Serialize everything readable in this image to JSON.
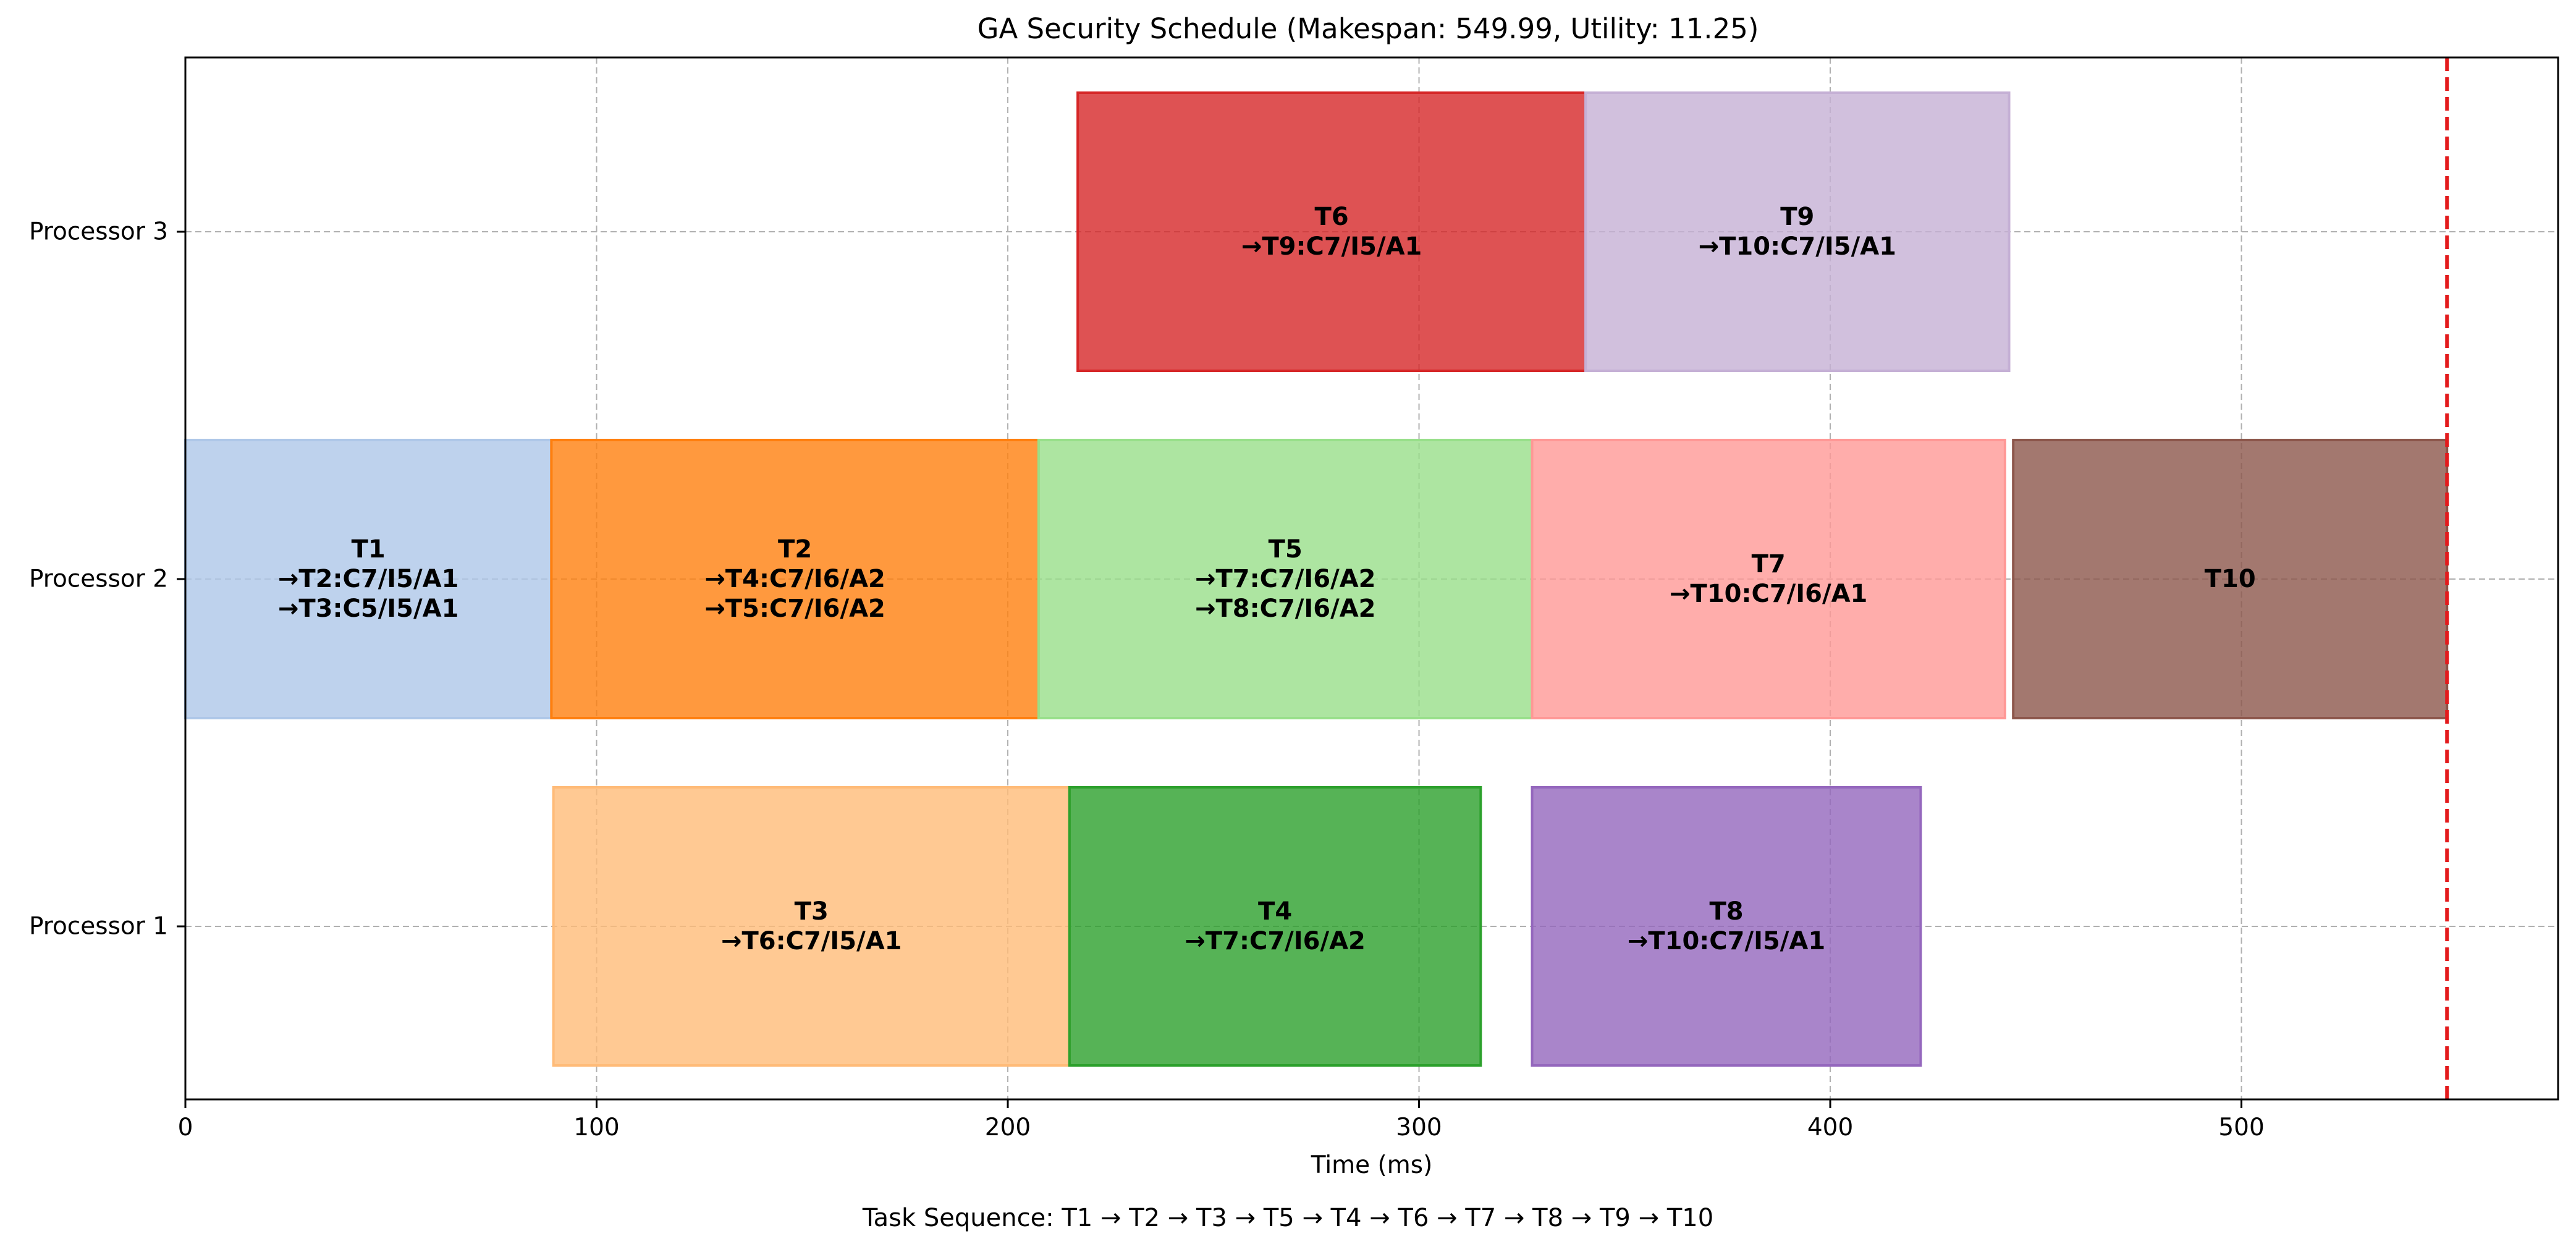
{
  "chart_data": {
    "type": "gantt",
    "title": "GA Security Schedule (Makespan: 549.99, Utility: 11.25)",
    "xlabel": "Time (ms)",
    "ylabel": "",
    "xlim": [
      0,
      577
    ],
    "xticks": [
      0,
      100,
      200,
      300,
      400,
      500
    ],
    "categories": [
      "Processor 1",
      "Processor 2",
      "Processor 3"
    ],
    "grid": true,
    "makespan": 549.99,
    "makespan_line_color": "#e31a1c",
    "tasks": [
      {
        "name": "T1",
        "processor": "Processor 2",
        "start": 0,
        "end": 89,
        "label": [
          "T1",
          "→T2:C7/I5/A1",
          "→T3:C5/I5/A1"
        ],
        "color": "#aec7e8"
      },
      {
        "name": "T2",
        "processor": "Processor 2",
        "start": 89,
        "end": 207.5,
        "label": [
          "T2",
          "→T4:C7/I6/A2",
          "→T5:C7/I6/A2"
        ],
        "color": "#ff7f0e"
      },
      {
        "name": "T5",
        "processor": "Processor 2",
        "start": 207.5,
        "end": 327.5,
        "label": [
          "T5",
          "→T7:C7/I6/A2",
          "→T8:C7/I6/A2"
        ],
        "color": "#98df8a"
      },
      {
        "name": "T7",
        "processor": "Processor 2",
        "start": 327.5,
        "end": 442.5,
        "label": [
          "T7",
          "→T10:C7/I6/A1"
        ],
        "color": "#ff9896"
      },
      {
        "name": "T10",
        "processor": "Processor 2",
        "start": 444.5,
        "end": 549.99,
        "label": [
          "T10"
        ],
        "color": "#8c564b"
      },
      {
        "name": "T3",
        "processor": "Processor 1",
        "start": 89.5,
        "end": 215,
        "label": [
          "T3",
          "→T6:C7/I5/A1"
        ],
        "color": "#ffbb78"
      },
      {
        "name": "T4",
        "processor": "Processor 1",
        "start": 215,
        "end": 315,
        "label": [
          "T4",
          "→T7:C7/I6/A2"
        ],
        "color": "#2ca02c"
      },
      {
        "name": "T8",
        "processor": "Processor 1",
        "start": 327.5,
        "end": 422,
        "label": [
          "T8",
          "→T10:C7/I5/A1"
        ],
        "color": "#9467bd"
      },
      {
        "name": "T6",
        "processor": "Processor 3",
        "start": 217,
        "end": 340.5,
        "label": [
          "T6",
          "→T9:C7/I5/A1"
        ],
        "color": "#d62728"
      },
      {
        "name": "T9",
        "processor": "Processor 3",
        "start": 340.5,
        "end": 443.5,
        "label": [
          "T9",
          "→T10:C7/I5/A1"
        ],
        "color": "#c5b0d5"
      }
    ]
  },
  "caption": "Task Sequence: T1 → T2 → T3 → T5 → T4 → T6 → T7 → T8 → T9 → T10"
}
